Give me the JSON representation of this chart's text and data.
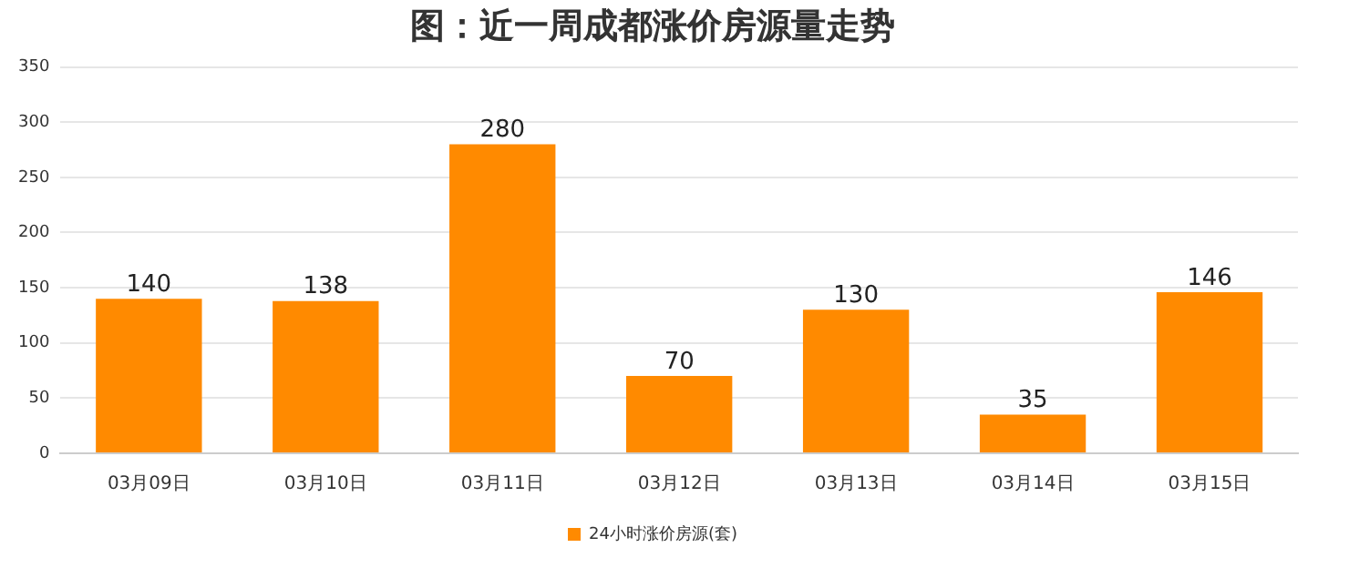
{
  "chart_data": {
    "type": "bar",
    "title": "图：近一周成都涨价房源量走势",
    "categories": [
      "03月09日",
      "03月10日",
      "03月11日",
      "03月12日",
      "03月13日",
      "03月14日",
      "03月15日"
    ],
    "series": [
      {
        "name": "24小时涨价房源(套)",
        "color": "#ff8a00",
        "values": [
          140,
          138,
          280,
          70,
          130,
          35,
          146
        ]
      }
    ],
    "ylim": [
      0,
      350
    ],
    "yticks": [
      0,
      50,
      100,
      150,
      200,
      250,
      300,
      350
    ],
    "grid": "y",
    "legend": "bottom",
    "data_labels": true
  }
}
